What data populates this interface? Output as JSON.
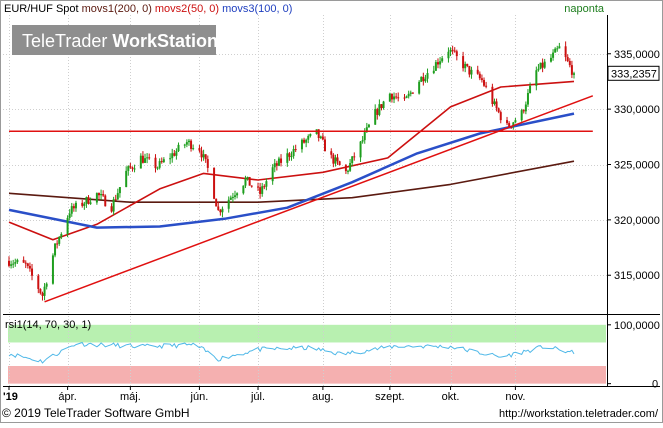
{
  "header": {
    "instrument": "EUR/HUF Spot",
    "ma_labels": [
      {
        "text": "movs1(200, 0)",
        "color": "#5b1a10"
      },
      {
        "text": "movs2(50, 0)",
        "color": "#cc1010"
      },
      {
        "text": "movs3(100, 0)",
        "color": "#1f3fbf"
      }
    ],
    "period": "naponta"
  },
  "watermark": {
    "part1": "TeleTrader ",
    "part2": "WorkStation"
  },
  "price_tag": "333,2357",
  "footer": {
    "copyright": "© 2019 TeleTrader Software GmbH",
    "url": "http://workstation.teletrader.com/"
  },
  "colors": {
    "up_candle": "#1e9e1e",
    "down_candle": "#cc1010",
    "ma200": "#5b1a10",
    "ma50": "#cc1010",
    "ma100": "#2a4fc8",
    "trend": "#e01010",
    "rsi_line": "#4fb8e8",
    "rsi_upper_band": "#b8f0b0",
    "rsi_lower_band": "#f5b0b0"
  },
  "chart_data": [
    {
      "type": "candlestick",
      "ylim": [
        311.5,
        338.5
      ],
      "y_ticks": [
        "315,0000",
        "320,0000",
        "325,0000",
        "330,0000",
        "335,0000"
      ],
      "y_tick_values": [
        315,
        320,
        325,
        330,
        335
      ],
      "x_tick_labels": [
        "'19",
        "ápr.",
        "máj.",
        "jún.",
        "júl.",
        "aug.",
        "szept.",
        "okt.",
        "nov."
      ],
      "x_tick_dates": [
        "2019-03-04",
        "2019-04-01",
        "2019-05-01",
        "2019-06-03",
        "2019-07-01",
        "2019-08-01",
        "2019-09-02",
        "2019-10-01",
        "2019-11-01"
      ],
      "x_range": [
        "2019-03-04",
        "2019-11-29"
      ],
      "last_price": 333.2357,
      "close_keypoints": [
        [
          "2019-03-04",
          316.3
        ],
        [
          "2019-03-12",
          315.9
        ],
        [
          "2019-03-20",
          313.2
        ],
        [
          "2019-03-26",
          317.5
        ],
        [
          "2019-04-02",
          320.8
        ],
        [
          "2019-04-09",
          321.6
        ],
        [
          "2019-04-15",
          322.3
        ],
        [
          "2019-04-22",
          321.2
        ],
        [
          "2019-04-29",
          324.3
        ],
        [
          "2019-05-06",
          325.6
        ],
        [
          "2019-05-14",
          324.8
        ],
        [
          "2019-05-21",
          325.9
        ],
        [
          "2019-05-28",
          327.0
        ],
        [
          "2019-06-03",
          326.5
        ],
        [
          "2019-06-07",
          324.6
        ],
        [
          "2019-06-12",
          320.8
        ],
        [
          "2019-06-18",
          322.1
        ],
        [
          "2019-06-25",
          323.6
        ],
        [
          "2019-07-02",
          322.4
        ],
        [
          "2019-07-08",
          324.6
        ],
        [
          "2019-07-15",
          325.8
        ],
        [
          "2019-07-22",
          326.9
        ],
        [
          "2019-07-29",
          327.8
        ],
        [
          "2019-08-05",
          325.6
        ],
        [
          "2019-08-12",
          324.3
        ],
        [
          "2019-08-19",
          326.8
        ],
        [
          "2019-08-26",
          329.6
        ],
        [
          "2019-09-02",
          331.4
        ],
        [
          "2019-09-09",
          330.6
        ],
        [
          "2019-09-16",
          332.6
        ],
        [
          "2019-09-23",
          333.9
        ],
        [
          "2019-09-30",
          335.4
        ],
        [
          "2019-10-04",
          334.6
        ],
        [
          "2019-10-10",
          333.4
        ],
        [
          "2019-10-16",
          332.6
        ],
        [
          "2019-10-22",
          330.3
        ],
        [
          "2019-10-28",
          328.4
        ],
        [
          "2019-11-04",
          329.6
        ],
        [
          "2019-11-11",
          333.4
        ],
        [
          "2019-11-18",
          334.6
        ],
        [
          "2019-11-22",
          335.5
        ],
        [
          "2019-11-29",
          333.2
        ]
      ],
      "series": [
        {
          "name": "movs1(200, 0)",
          "points": [
            [
              "2019-03-04",
              322.4
            ],
            [
              "2019-05-01",
              321.6
            ],
            [
              "2019-07-01",
              321.6
            ],
            [
              "2019-08-15",
              322.0
            ],
            [
              "2019-10-01",
              323.2
            ],
            [
              "2019-11-29",
              325.3
            ]
          ]
        },
        {
          "name": "movs2(50, 0)",
          "points": [
            [
              "2019-03-04",
              319.8
            ],
            [
              "2019-03-25",
              318.2
            ],
            [
              "2019-04-15",
              319.6
            ],
            [
              "2019-05-15",
              322.8
            ],
            [
              "2019-06-05",
              324.2
            ],
            [
              "2019-07-01",
              323.6
            ],
            [
              "2019-08-01",
              324.3
            ],
            [
              "2019-09-01",
              325.6
            ],
            [
              "2019-10-01",
              330.2
            ],
            [
              "2019-10-25",
              332.0
            ],
            [
              "2019-11-29",
              332.5
            ]
          ]
        },
        {
          "name": "movs3(100, 0)",
          "points": [
            [
              "2019-03-04",
              320.9
            ],
            [
              "2019-04-15",
              319.3
            ],
            [
              "2019-05-15",
              319.4
            ],
            [
              "2019-06-15",
              320.1
            ],
            [
              "2019-07-15",
              321.1
            ],
            [
              "2019-08-15",
              323.4
            ],
            [
              "2019-09-15",
              326.0
            ],
            [
              "2019-10-15",
              327.8
            ],
            [
              "2019-11-29",
              329.6
            ]
          ]
        },
        {
          "name": "",
          "role": "trendline",
          "points": [
            [
              "2019-03-21",
              312.6
            ],
            [
              "2019-12-08",
              331.2
            ]
          ]
        },
        {
          "name": "",
          "role": "horizontal",
          "points": [
            [
              "2019-03-04",
              328.0
            ],
            [
              "2019-12-08",
              328.0
            ]
          ]
        }
      ]
    },
    {
      "type": "line",
      "title": "rsi1(14, 70, 30, 1)",
      "ylim": [
        -4,
        115
      ],
      "y_ticks": [
        "100,0000",
        "0"
      ],
      "y_tick_values": [
        100,
        0
      ],
      "bands": {
        "upper": [
          70,
          100
        ],
        "lower": [
          0,
          30
        ]
      },
      "series": [
        {
          "name": "rsi1(14, 70, 30, 1)",
          "points": [
            [
              "2019-03-04",
              51
            ],
            [
              "2019-03-20",
              38
            ],
            [
              "2019-04-05",
              68
            ],
            [
              "2019-05-08",
              63
            ],
            [
              "2019-06-01",
              66
            ],
            [
              "2019-06-12",
              42
            ],
            [
              "2019-07-01",
              58
            ],
            [
              "2019-07-26",
              61
            ],
            [
              "2019-08-10",
              50
            ],
            [
              "2019-09-05",
              64
            ],
            [
              "2019-10-01",
              63
            ],
            [
              "2019-10-25",
              45
            ],
            [
              "2019-11-15",
              63
            ],
            [
              "2019-11-29",
              52
            ]
          ]
        }
      ]
    }
  ]
}
